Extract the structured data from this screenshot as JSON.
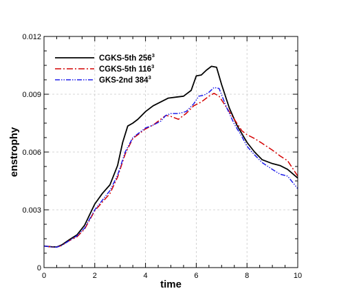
{
  "chart_data": {
    "type": "line",
    "title": "",
    "xlabel": "time",
    "ylabel": "enstrophy",
    "xlim": [
      0,
      10
    ],
    "ylim": [
      0,
      0.012
    ],
    "xticks": [
      0,
      2,
      4,
      6,
      8,
      10
    ],
    "xtick_labels": [
      "0",
      "2",
      "4",
      "6",
      "8",
      "10"
    ],
    "yticks": [
      0,
      0.003,
      0.006,
      0.009,
      0.012
    ],
    "ytick_labels": [
      "0",
      "0.003",
      "0.006",
      "0.009",
      "0.012"
    ],
    "grid": true,
    "legend_position": "top-left",
    "series": [
      {
        "name": "CGKS-5th 256",
        "name_sup": "3",
        "color": "#000000",
        "dash": "solid",
        "x": [
          0,
          0.3,
          0.5,
          0.7,
          1.0,
          1.3,
          1.6,
          2.0,
          2.3,
          2.6,
          2.9,
          3.1,
          3.3,
          3.5,
          3.7,
          4.0,
          4.3,
          4.6,
          4.9,
          5.2,
          5.5,
          5.8,
          6.0,
          6.2,
          6.4,
          6.6,
          6.8,
          7.0,
          7.3,
          7.6,
          8.0,
          8.3,
          8.6,
          9.0,
          9.3,
          9.6,
          10.0
        ],
        "y": [
          0.00112,
          0.00108,
          0.00107,
          0.00118,
          0.00145,
          0.0017,
          0.0022,
          0.0033,
          0.00385,
          0.0043,
          0.0053,
          0.0065,
          0.00735,
          0.0075,
          0.0077,
          0.0081,
          0.0084,
          0.0086,
          0.0088,
          0.00885,
          0.0089,
          0.0092,
          0.00995,
          0.01,
          0.01025,
          0.01045,
          0.0104,
          0.0095,
          0.0083,
          0.0074,
          0.0065,
          0.006,
          0.0056,
          0.0054,
          0.0053,
          0.0051,
          0.00465
        ]
      },
      {
        "name": "CGKS-5th 116",
        "name_sup": "3",
        "color": "#d40000",
        "dash": "dashdot",
        "x": [
          0,
          0.3,
          0.5,
          0.7,
          1.0,
          1.3,
          1.6,
          2.0,
          2.3,
          2.6,
          2.9,
          3.2,
          3.5,
          3.8,
          4.0,
          4.3,
          4.6,
          4.8,
          5.0,
          5.3,
          5.6,
          5.9,
          6.2,
          6.5,
          6.7,
          6.9,
          7.2,
          7.5,
          7.8,
          8.0,
          8.3,
          8.6,
          9.0,
          9.3,
          9.6,
          10.0
        ],
        "y": [
          0.00112,
          0.00107,
          0.00106,
          0.00115,
          0.0014,
          0.0016,
          0.002,
          0.00295,
          0.0034,
          0.00385,
          0.0047,
          0.0059,
          0.0067,
          0.007,
          0.0072,
          0.0074,
          0.0077,
          0.0079,
          0.00785,
          0.0077,
          0.008,
          0.0084,
          0.0086,
          0.0089,
          0.00905,
          0.0089,
          0.0083,
          0.0077,
          0.0071,
          0.0069,
          0.0067,
          0.00645,
          0.0061,
          0.0058,
          0.00555,
          0.00475
        ]
      },
      {
        "name": "GKS-2nd 384",
        "name_sup": "3",
        "color": "#1e1eeb",
        "dash": "dashdotdot",
        "x": [
          0,
          0.3,
          0.5,
          0.7,
          1.0,
          1.3,
          1.6,
          2.0,
          2.3,
          2.6,
          2.9,
          3.2,
          3.5,
          3.8,
          4.0,
          4.3,
          4.6,
          4.8,
          5.0,
          5.3,
          5.6,
          5.9,
          6.1,
          6.3,
          6.5,
          6.7,
          6.9,
          7.2,
          7.5,
          7.8,
          8.0,
          8.3,
          8.6,
          9.0,
          9.3,
          9.6,
          10.0
        ],
        "y": [
          0.00112,
          0.00107,
          0.00106,
          0.00115,
          0.0014,
          0.00165,
          0.00205,
          0.003,
          0.0035,
          0.004,
          0.0048,
          0.006,
          0.00675,
          0.00705,
          0.00725,
          0.0074,
          0.0076,
          0.0079,
          0.008,
          0.008,
          0.0081,
          0.0085,
          0.0089,
          0.00895,
          0.0091,
          0.00935,
          0.0093,
          0.0083,
          0.00745,
          0.0068,
          0.0063,
          0.00585,
          0.00545,
          0.0051,
          0.00485,
          0.00475,
          0.0041
        ]
      }
    ]
  }
}
